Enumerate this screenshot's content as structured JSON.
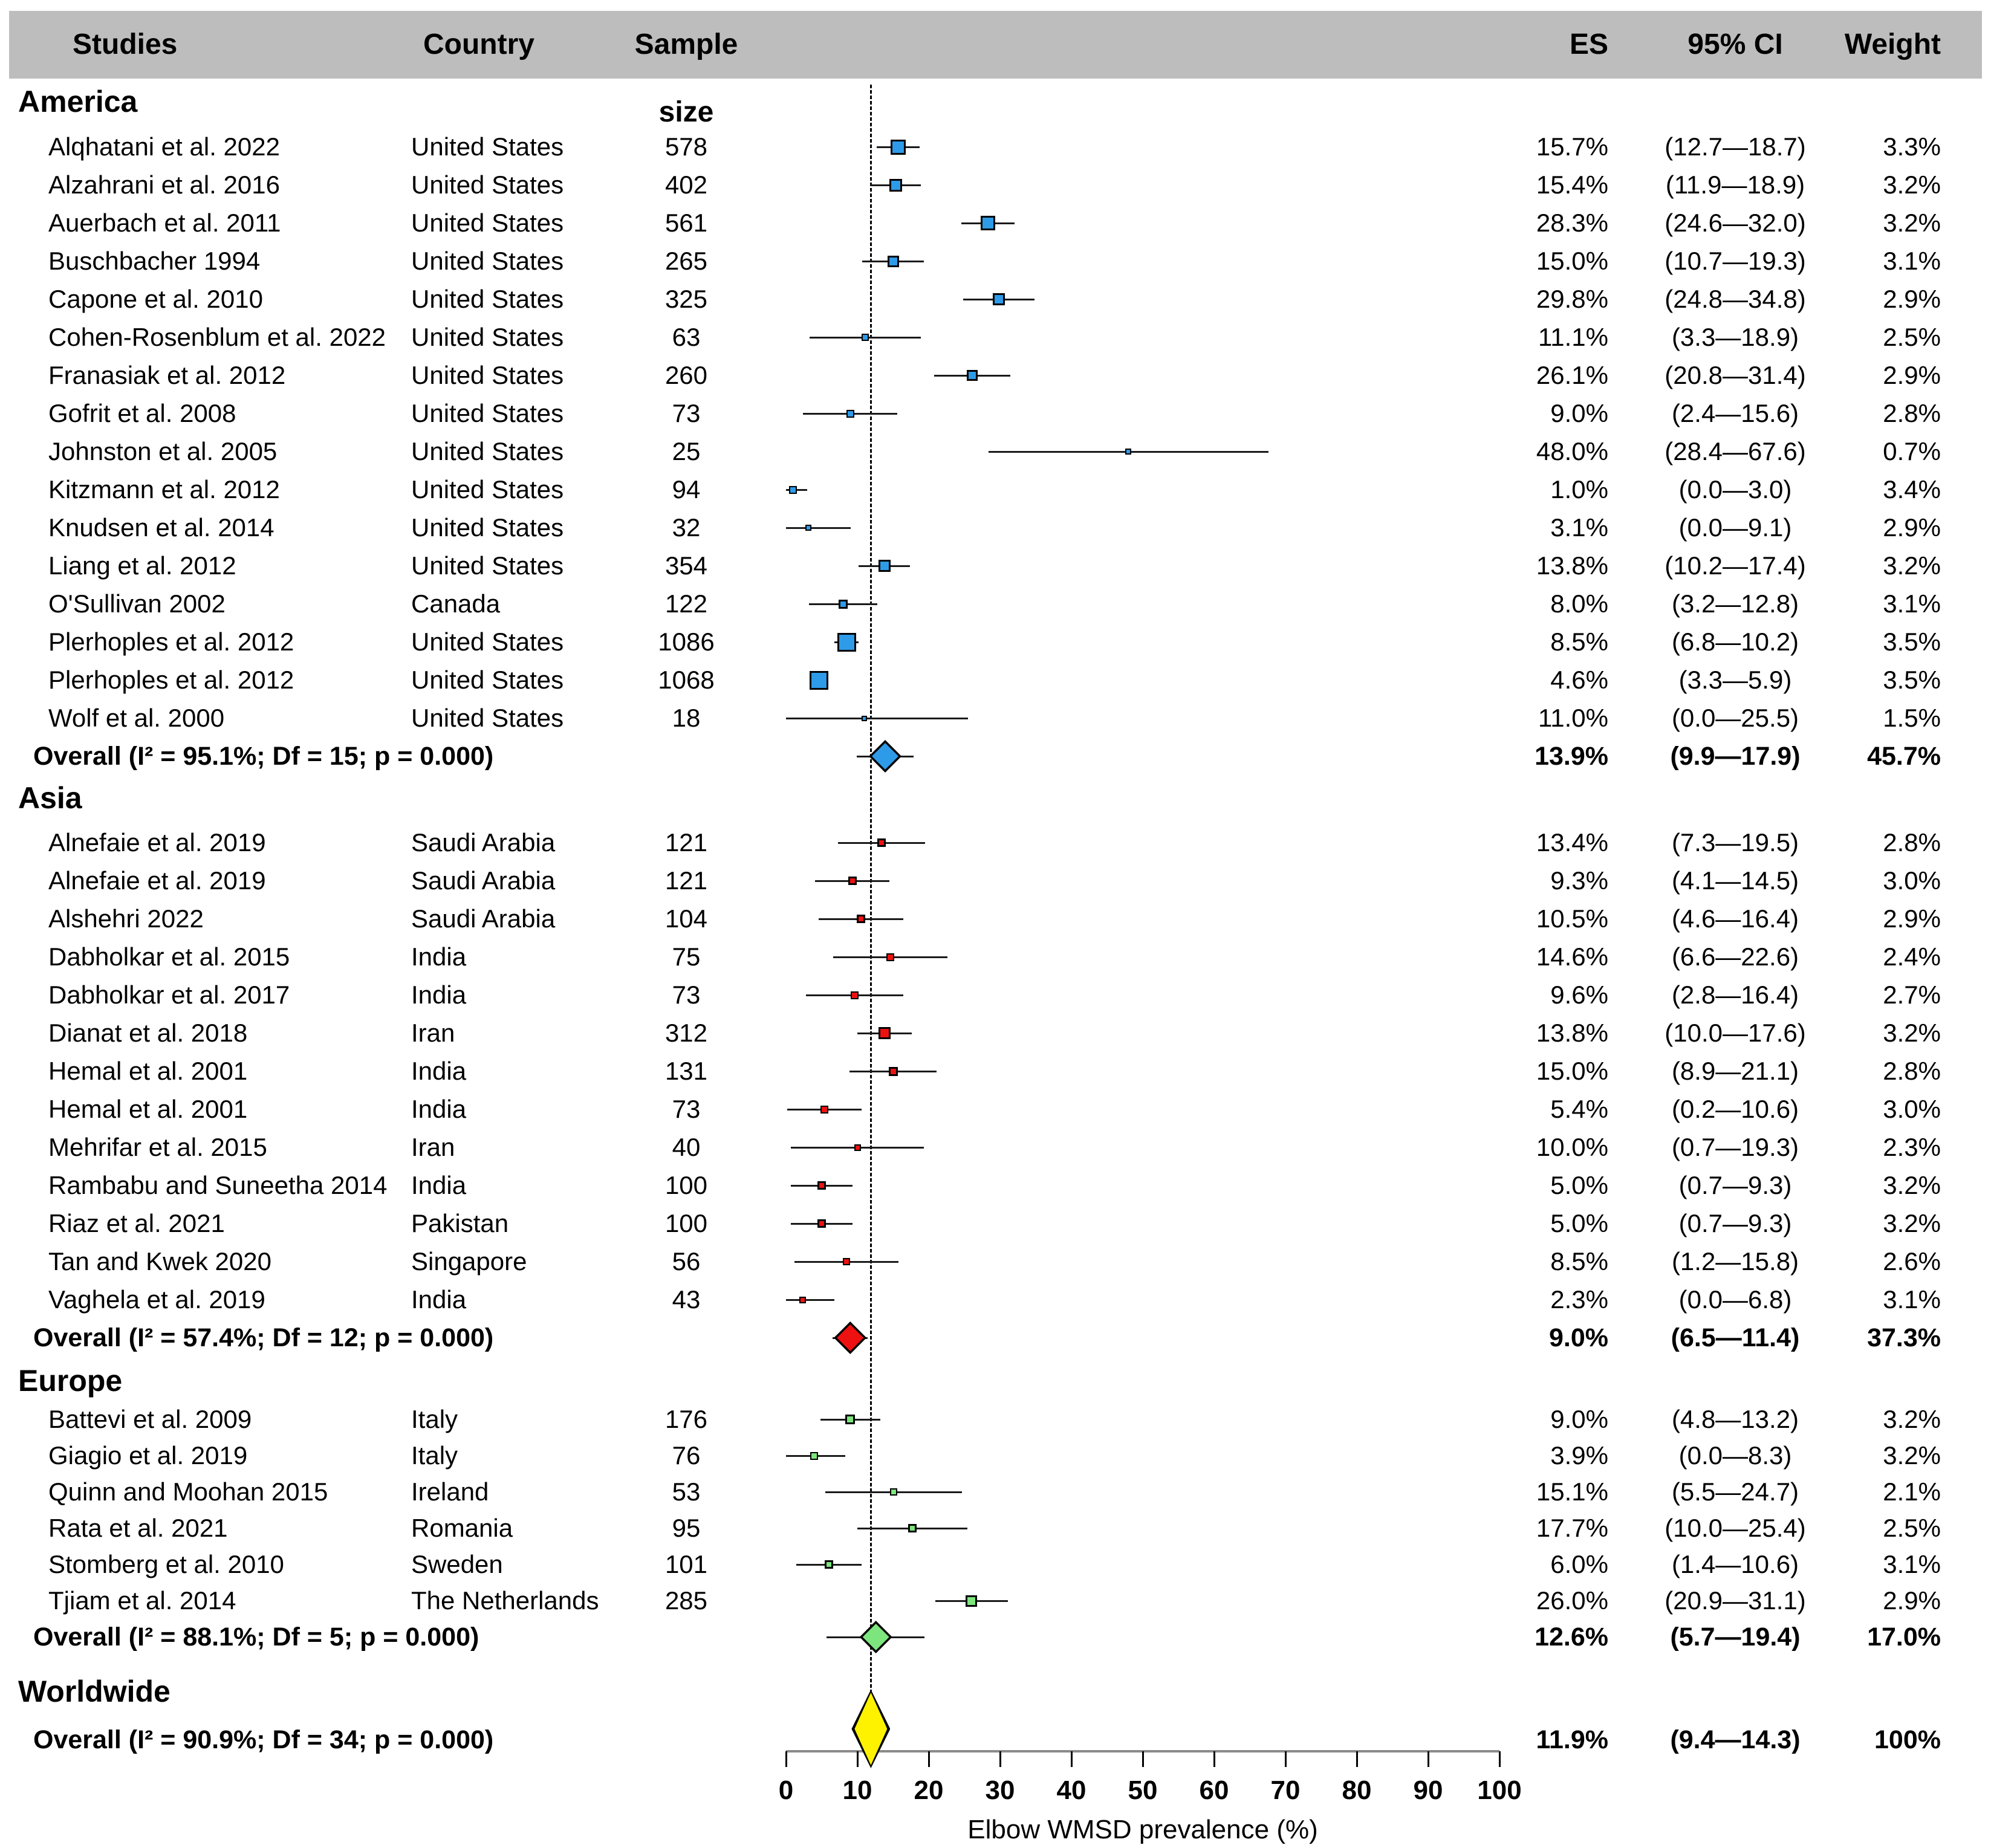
{
  "chart_data": {
    "type": "scatter",
    "subtype": "forest-plot",
    "title": "",
    "columns": [
      "Studies",
      "Country",
      "Sample size",
      "ES",
      "95% CI",
      "Weight"
    ],
    "axis": {
      "label": "Elbow WMSD prevalence (%)",
      "min": 0,
      "max": 100,
      "ticks": [
        0,
        10,
        20,
        30,
        40,
        50,
        60,
        70,
        80,
        90,
        100
      ],
      "reference_line_value": 11.9
    },
    "colors": {
      "america": "#2E9BE9",
      "asia": "#EE1111",
      "europe": "#7DE57D",
      "worldwide": "#FFF200",
      "header_bar": "#BDBDBD",
      "ci_line": "#1A1A1A"
    },
    "sections": [
      {
        "name": "America",
        "color": "#2E9BE9",
        "rows": [
          {
            "study": "Alqhatani et al. 2022",
            "country": "United States",
            "n": 578,
            "es": 15.7,
            "lo": 12.7,
            "hi": 18.7,
            "es_text": "15.7%",
            "ci_text": "(12.7—18.7)",
            "weight_text": "3.3%"
          },
          {
            "study": "Alzahrani et al. 2016",
            "country": "United States",
            "n": 402,
            "es": 15.4,
            "lo": 11.9,
            "hi": 18.9,
            "es_text": "15.4%",
            "ci_text": "(11.9—18.9)",
            "weight_text": "3.2%"
          },
          {
            "study": "Auerbach et al. 2011",
            "country": "United States",
            "n": 561,
            "es": 28.3,
            "lo": 24.6,
            "hi": 32.0,
            "es_text": "28.3%",
            "ci_text": "(24.6—32.0)",
            "weight_text": "3.2%"
          },
          {
            "study": "Buschbacher 1994",
            "country": "United States",
            "n": 265,
            "es": 15.0,
            "lo": 10.7,
            "hi": 19.3,
            "es_text": "15.0%",
            "ci_text": "(10.7—19.3)",
            "weight_text": "3.1%"
          },
          {
            "study": "Capone et al. 2010",
            "country": "United States",
            "n": 325,
            "es": 29.8,
            "lo": 24.8,
            "hi": 34.8,
            "es_text": "29.8%",
            "ci_text": "(24.8—34.8)",
            "weight_text": "2.9%"
          },
          {
            "study": "Cohen-Rosenblum et al. 2022",
            "country": "United States",
            "n": 63,
            "es": 11.1,
            "lo": 3.3,
            "hi": 18.9,
            "es_text": "11.1%",
            "ci_text": "(3.3—18.9)",
            "weight_text": "2.5%"
          },
          {
            "study": "Franasiak et al. 2012",
            "country": "United States",
            "n": 260,
            "es": 26.1,
            "lo": 20.8,
            "hi": 31.4,
            "es_text": "26.1%",
            "ci_text": "(20.8—31.4)",
            "weight_text": "2.9%"
          },
          {
            "study": "Gofrit et al. 2008",
            "country": "United States",
            "n": 73,
            "es": 9.0,
            "lo": 2.4,
            "hi": 15.6,
            "es_text": "9.0%",
            "ci_text": "(2.4—15.6)",
            "weight_text": "2.8%"
          },
          {
            "study": "Johnston et al. 2005",
            "country": "United States",
            "n": 25,
            "es": 48.0,
            "lo": 28.4,
            "hi": 67.6,
            "es_text": "48.0%",
            "ci_text": "(28.4—67.6)",
            "weight_text": "0.7%"
          },
          {
            "study": "Kitzmann et al. 2012",
            "country": "United States",
            "n": 94,
            "es": 1.0,
            "lo": 0.0,
            "hi": 3.0,
            "es_text": "1.0%",
            "ci_text": "(0.0—3.0)",
            "weight_text": "3.4%"
          },
          {
            "study": "Knudsen et al. 2014",
            "country": "United States",
            "n": 32,
            "es": 3.1,
            "lo": 0.0,
            "hi": 9.1,
            "es_text": "3.1%",
            "ci_text": "(0.0—9.1)",
            "weight_text": "2.9%"
          },
          {
            "study": "Liang et al. 2012",
            "country": "United States",
            "n": 354,
            "es": 13.8,
            "lo": 10.2,
            "hi": 17.4,
            "es_text": "13.8%",
            "ci_text": "(10.2—17.4)",
            "weight_text": "3.2%"
          },
          {
            "study": "O'Sullivan 2002",
            "country": "Canada",
            "n": 122,
            "es": 8.0,
            "lo": 3.2,
            "hi": 12.8,
            "es_text": "8.0%",
            "ci_text": "(3.2—12.8)",
            "weight_text": "3.1%"
          },
          {
            "study": "Plerhoples et al. 2012",
            "country": "United States",
            "n": 1086,
            "es": 8.5,
            "lo": 6.8,
            "hi": 10.2,
            "es_text": "8.5%",
            "ci_text": "(6.8—10.2)",
            "weight_text": "3.5%"
          },
          {
            "study": "Plerhoples et al. 2012",
            "country": "United States",
            "n": 1068,
            "es": 4.6,
            "lo": 3.3,
            "hi": 5.9,
            "es_text": "4.6%",
            "ci_text": "(3.3—5.9)",
            "weight_text": "3.5%"
          },
          {
            "study": "Wolf et al. 2000",
            "country": "United States",
            "n": 18,
            "es": 11.0,
            "lo": 0.0,
            "hi": 25.5,
            "es_text": "11.0%",
            "ci_text": "(0.0—25.5)",
            "weight_text": "1.5%"
          }
        ],
        "overall": {
          "label": "Overall (I² = 95.1%; Df = 15; p = 0.000)",
          "es": 13.9,
          "lo": 9.9,
          "hi": 17.9,
          "es_text": "13.9%",
          "ci_text": "(9.9—17.9)",
          "weight_text": "45.7%"
        }
      },
      {
        "name": "Asia",
        "color": "#EE1111",
        "rows": [
          {
            "study": "Alnefaie et al. 2019",
            "country": "Saudi Arabia",
            "n": 121,
            "es": 13.4,
            "lo": 7.3,
            "hi": 19.5,
            "es_text": "13.4%",
            "ci_text": "(7.3—19.5)",
            "weight_text": "2.8%"
          },
          {
            "study": "Alnefaie et al. 2019",
            "country": "Saudi Arabia",
            "n": 121,
            "es": 9.3,
            "lo": 4.1,
            "hi": 14.5,
            "es_text": "9.3%",
            "ci_text": "(4.1—14.5)",
            "weight_text": "3.0%"
          },
          {
            "study": "Alshehri 2022",
            "country": "Saudi Arabia",
            "n": 104,
            "es": 10.5,
            "lo": 4.6,
            "hi": 16.4,
            "es_text": "10.5%",
            "ci_text": "(4.6—16.4)",
            "weight_text": "2.9%"
          },
          {
            "study": "Dabholkar et al. 2015",
            "country": "India",
            "n": 75,
            "es": 14.6,
            "lo": 6.6,
            "hi": 22.6,
            "es_text": "14.6%",
            "ci_text": "(6.6—22.6)",
            "weight_text": "2.4%"
          },
          {
            "study": "Dabholkar et al. 2017",
            "country": "India",
            "n": 73,
            "es": 9.6,
            "lo": 2.8,
            "hi": 16.4,
            "es_text": "9.6%",
            "ci_text": "(2.8—16.4)",
            "weight_text": "2.7%"
          },
          {
            "study": "Dianat et al. 2018",
            "country": "Iran",
            "n": 312,
            "es": 13.8,
            "lo": 10.0,
            "hi": 17.6,
            "es_text": "13.8%",
            "ci_text": "(10.0—17.6)",
            "weight_text": "3.2%"
          },
          {
            "study": "Hemal et al. 2001",
            "country": "India",
            "n": 131,
            "es": 15.0,
            "lo": 8.9,
            "hi": 21.1,
            "es_text": "15.0%",
            "ci_text": "(8.9—21.1)",
            "weight_text": "2.8%"
          },
          {
            "study": "Hemal et al. 2001",
            "country": "India",
            "n": 73,
            "es": 5.4,
            "lo": 0.2,
            "hi": 10.6,
            "es_text": "5.4%",
            "ci_text": "(0.2—10.6)",
            "weight_text": "3.0%"
          },
          {
            "study": "Mehrifar et al. 2015",
            "country": "Iran",
            "n": 40,
            "es": 10.0,
            "lo": 0.7,
            "hi": 19.3,
            "es_text": "10.0%",
            "ci_text": "(0.7—19.3)",
            "weight_text": "2.3%"
          },
          {
            "study": "Rambabu and Suneetha 2014",
            "country": "India",
            "n": 100,
            "es": 5.0,
            "lo": 0.7,
            "hi": 9.3,
            "es_text": "5.0%",
            "ci_text": "(0.7—9.3)",
            "weight_text": "3.2%"
          },
          {
            "study": "Riaz et al. 2021",
            "country": "Pakistan",
            "n": 100,
            "es": 5.0,
            "lo": 0.7,
            "hi": 9.3,
            "es_text": "5.0%",
            "ci_text": "(0.7—9.3)",
            "weight_text": "3.2%"
          },
          {
            "study": "Tan and Kwek 2020",
            "country": "Singapore",
            "n": 56,
            "es": 8.5,
            "lo": 1.2,
            "hi": 15.8,
            "es_text": "8.5%",
            "ci_text": "(1.2—15.8)",
            "weight_text": "2.6%"
          },
          {
            "study": "Vaghela et al. 2019",
            "country": "India",
            "n": 43,
            "es": 2.3,
            "lo": 0.0,
            "hi": 6.8,
            "es_text": "2.3%",
            "ci_text": "(0.0—6.8)",
            "weight_text": "3.1%"
          }
        ],
        "overall": {
          "label": "Overall (I² = 57.4%; Df = 12; p = 0.000)",
          "es": 9.0,
          "lo": 6.5,
          "hi": 11.4,
          "es_text": "9.0%",
          "ci_text": "(6.5—11.4)",
          "weight_text": "37.3%"
        }
      },
      {
        "name": "Europe",
        "color": "#7DE57D",
        "rows": [
          {
            "study": "Battevi et al. 2009",
            "country": "Italy",
            "n": 176,
            "es": 9.0,
            "lo": 4.8,
            "hi": 13.2,
            "es_text": "9.0%",
            "ci_text": "(4.8—13.2)",
            "weight_text": "3.2%"
          },
          {
            "study": "Giagio et al. 2019",
            "country": "Italy",
            "n": 76,
            "es": 3.9,
            "lo": 0.0,
            "hi": 8.3,
            "es_text": "3.9%",
            "ci_text": "(0.0—8.3)",
            "weight_text": "3.2%"
          },
          {
            "study": "Quinn and Moohan 2015",
            "country": "Ireland",
            "n": 53,
            "es": 15.1,
            "lo": 5.5,
            "hi": 24.7,
            "es_text": "15.1%",
            "ci_text": "(5.5—24.7)",
            "weight_text": "2.1%"
          },
          {
            "study": "Rata et al. 2021",
            "country": "Romania",
            "n": 95,
            "es": 17.7,
            "lo": 10.0,
            "hi": 25.4,
            "es_text": "17.7%",
            "ci_text": "(10.0—25.4)",
            "weight_text": "2.5%"
          },
          {
            "study": "Stomberg et al. 2010",
            "country": "Sweden",
            "n": 101,
            "es": 6.0,
            "lo": 1.4,
            "hi": 10.6,
            "es_text": "6.0%",
            "ci_text": "(1.4—10.6)",
            "weight_text": "3.1%"
          },
          {
            "study": "Tjiam et al. 2014",
            "country": "The Netherlands",
            "n": 285,
            "es": 26.0,
            "lo": 20.9,
            "hi": 31.1,
            "es_text": "26.0%",
            "ci_text": "(20.9—31.1)",
            "weight_text": "2.9%"
          }
        ],
        "overall": {
          "label": "Overall (I² = 88.1%; Df = 5; p = 0.000)",
          "es": 12.6,
          "lo": 5.7,
          "hi": 19.4,
          "es_text": "12.6%",
          "ci_text": "(5.7—19.4)",
          "weight_text": "17.0%"
        }
      }
    ],
    "worldwide": {
      "name": "Worldwide",
      "color": "#FFF200",
      "overall": {
        "label": "Overall (I² = 90.9%; Df = 34; p = 0.000)",
        "es": 11.9,
        "lo": 9.4,
        "hi": 14.3,
        "es_text": "11.9%",
        "ci_text": "(9.4—14.3)",
        "weight_text": "100%"
      }
    }
  }
}
